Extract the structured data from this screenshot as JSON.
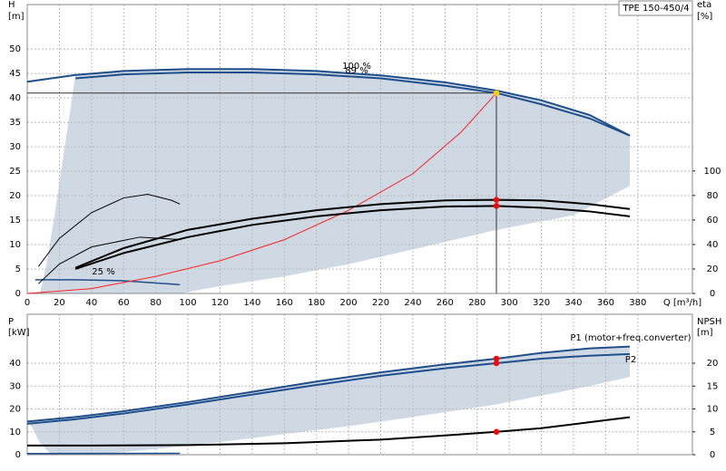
{
  "chart_data": [
    {
      "type": "line",
      "title": "TPE 150-450/4",
      "y_label": "H",
      "y_unit": "[m]",
      "y2_label": "eta",
      "y2_unit": "[%]",
      "x_label": "Q [m³/h]",
      "xlim": [
        0,
        414
      ],
      "xticks": [
        0,
        20,
        40,
        60,
        80,
        100,
        120,
        140,
        160,
        180,
        200,
        220,
        240,
        260,
        280,
        300,
        320,
        340,
        360,
        380
      ],
      "ylim": [
        0,
        59.1
      ],
      "yticks": [
        0,
        5,
        10,
        15,
        20,
        25,
        30,
        35,
        40,
        45,
        50
      ],
      "y2lim": [
        0,
        236
      ],
      "y2ticks": [
        0,
        20,
        40,
        60,
        80,
        100
      ],
      "grid": true,
      "area": {
        "color": "#cfd9e4",
        "x": [
          30,
          60,
          100,
          140,
          180,
          220,
          260,
          292,
          320,
          350,
          375,
          375,
          340,
          292,
          240,
          200,
          160,
          120,
          95,
          8,
          12,
          17,
          22,
          27
        ],
        "values": [
          44.7,
          45.5,
          45.9,
          45.9,
          45.5,
          44.6,
          43.2,
          41.5,
          39.5,
          36.5,
          32.3,
          22,
          16,
          13,
          9,
          6,
          3.5,
          1.5,
          0,
          0,
          6,
          16,
          27,
          38
        ]
      },
      "series": [
        {
          "name": "100 %",
          "color": "#1f4e8c",
          "width": 2,
          "x": [
            0,
            30,
            60,
            100,
            140,
            180,
            220,
            260,
            292,
            320,
            350,
            375
          ],
          "values": [
            43.3,
            44.7,
            45.5,
            45.9,
            45.9,
            45.5,
            44.6,
            43.2,
            41.5,
            39.5,
            36.5,
            32.3
          ]
        },
        {
          "name": "89 %",
          "color": "#1f4e8c",
          "width": 2,
          "x": [
            30,
            60,
            100,
            140,
            180,
            220,
            260,
            292,
            320,
            350,
            375
          ],
          "values": [
            44,
            44.8,
            45.2,
            45.2,
            44.8,
            44,
            42.5,
            41,
            38.7,
            35.8,
            32.3
          ]
        },
        {
          "name": "25 %",
          "color": "#1f4e8c",
          "width": 1.5,
          "x": [
            5,
            30,
            60,
            95
          ],
          "values": [
            2.8,
            2.8,
            2.6,
            1.8
          ]
        },
        {
          "color": "#ff2020",
          "width": 1,
          "x": [
            0,
            40,
            80,
            120,
            160,
            200,
            240,
            270,
            292
          ],
          "values": [
            0,
            1,
            3.5,
            6.7,
            11,
            17,
            24.5,
            33,
            41
          ]
        },
        {
          "color": "#000000",
          "width": 2,
          "axis": "y2",
          "x": [
            30,
            60,
            100,
            140,
            180,
            220,
            260,
            292,
            320,
            350,
            375
          ],
          "values": [
            21,
            37,
            52,
            61,
            68,
            73,
            76,
            76.5,
            76,
            73,
            69
          ]
        },
        {
          "color": "#000000",
          "width": 2,
          "axis": "y2",
          "x": [
            30,
            60,
            100,
            140,
            180,
            220,
            260,
            292,
            320,
            350,
            375
          ],
          "values": [
            20,
            33,
            46,
            56,
            63,
            68,
            71,
            71.5,
            70,
            67,
            63
          ]
        },
        {
          "color": "#000000",
          "width": 1,
          "axis": "y2",
          "x": [
            7,
            20,
            40,
            60,
            75,
            90,
            95
          ],
          "values": [
            22,
            45,
            66,
            78,
            81,
            76,
            73
          ]
        },
        {
          "color": "#000000",
          "width": 1,
          "axis": "y2",
          "x": [
            7,
            20,
            40,
            70,
            95
          ],
          "values": [
            8,
            24,
            38,
            46,
            44
          ]
        }
      ],
      "markers": [
        {
          "x": 292,
          "value": 41,
          "color": "#ffcc00"
        },
        {
          "x": 292,
          "value": 76.5,
          "axis": "y2",
          "color": "#ff0000"
        },
        {
          "x": 292,
          "value": 71.5,
          "axis": "y2",
          "color": "#ff0000"
        }
      ]
    },
    {
      "type": "line",
      "y_label": "P",
      "y_unit": "[kW]",
      "y2_label": "NPSH",
      "y2_unit": "[m]",
      "xlim": [
        0,
        414
      ],
      "xticks": [
        0,
        20,
        40,
        60,
        80,
        100,
        120,
        140,
        160,
        180,
        200,
        220,
        240,
        260,
        280,
        300,
        320,
        340,
        360,
        380
      ],
      "ylim": [
        0,
        61.4
      ],
      "yticks": [
        0,
        10,
        20,
        30,
        40
      ],
      "y2lim": [
        0,
        30.7
      ],
      "y2ticks": [
        0,
        5,
        10,
        15,
        20
      ],
      "grid": true,
      "area": {
        "color": "#cfd9e4",
        "x": [
          0,
          30,
          60,
          100,
          140,
          180,
          220,
          260,
          292,
          320,
          350,
          375,
          375,
          350,
          292,
          240,
          200,
          160,
          120,
          80,
          50,
          35,
          15,
          8,
          3
        ],
        "values": [
          14.5,
          16.5,
          19,
          23,
          27.5,
          32,
          36,
          39.5,
          42,
          44.5,
          46.5,
          47.3,
          34,
          30,
          22,
          16.5,
          12.5,
          9,
          5.5,
          2.5,
          0.5,
          0,
          0,
          5,
          12
        ]
      },
      "series": [
        {
          "name": "P1 (motor+freq.converter)",
          "color": "#1f4e8c",
          "width": 2,
          "x": [
            0,
            30,
            60,
            100,
            140,
            180,
            220,
            260,
            292,
            320,
            350,
            375
          ],
          "values": [
            14.5,
            16.5,
            19,
            23,
            27.5,
            32,
            36,
            39.5,
            42,
            44.5,
            46.5,
            47.3
          ]
        },
        {
          "name": "P2",
          "color": "#1f4e8c",
          "width": 2,
          "x": [
            0,
            30,
            60,
            100,
            140,
            180,
            220,
            260,
            292,
            320,
            350,
            375
          ],
          "values": [
            13.5,
            15.5,
            18,
            22,
            26.3,
            30.5,
            34.5,
            37.8,
            40,
            42,
            43.3,
            44
          ]
        },
        {
          "color": "#1f4e8c",
          "width": 1.5,
          "x": [
            0,
            95
          ],
          "values": [
            0.5,
            0.6
          ]
        },
        {
          "color": "#000000",
          "width": 2,
          "axis": "y2",
          "x": [
            0,
            40,
            100,
            160,
            220,
            260,
            292,
            320,
            350,
            375
          ],
          "values": [
            2,
            2,
            2.1,
            2.5,
            3.3,
            4.2,
            5,
            5.8,
            7.1,
            8.2
          ]
        }
      ],
      "markers": [
        {
          "x": 292,
          "value": 42,
          "color": "#ff0000"
        },
        {
          "x": 292,
          "value": 40,
          "color": "#ff0000"
        },
        {
          "x": 292,
          "value": 5,
          "axis": "y2",
          "color": "#ff0000"
        }
      ]
    }
  ]
}
